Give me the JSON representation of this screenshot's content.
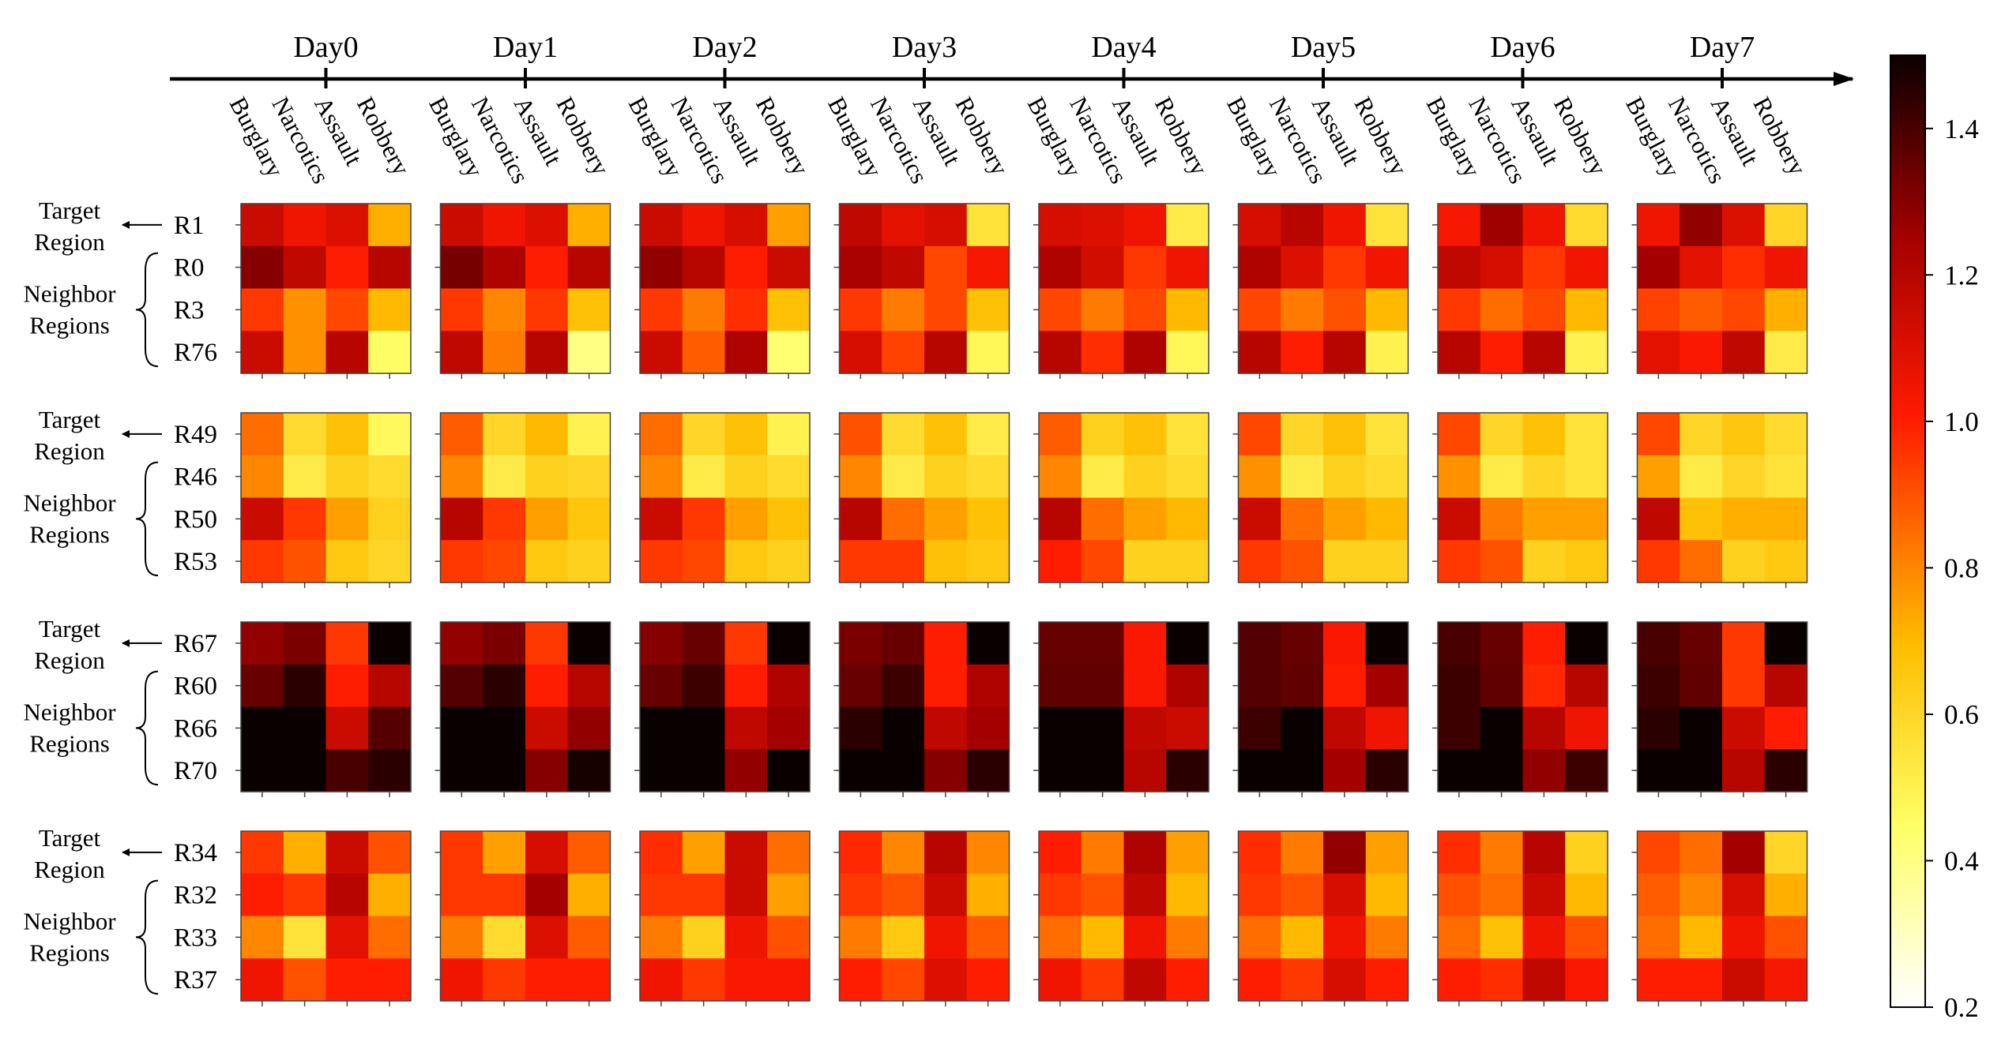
{
  "chart_data": {
    "type": "heatmap",
    "title": "",
    "timeline": [
      "Day0",
      "Day1",
      "Day2",
      "Day3",
      "Day4",
      "Day5",
      "Day6",
      "Day7"
    ],
    "categories": [
      "Burglary",
      "Narcotics",
      "Assault",
      "Robbery"
    ],
    "colormap": "hot_r",
    "colorbar": {
      "min": 0.2,
      "max": 1.5,
      "ticks": [
        0.2,
        0.4,
        0.6,
        0.8,
        1.0,
        1.2,
        1.4
      ],
      "tick_labels": [
        "0.2",
        "0.4",
        "0.6",
        "0.8",
        "1.0",
        "1.2",
        "1.4"
      ]
    },
    "region_labels": {
      "target": "Target Region",
      "neighbor": "Neighbor Regions"
    },
    "groups": [
      {
        "rows": [
          "R1",
          "R0",
          "R3",
          "R76"
        ],
        "days": [
          [
            [
              1.15,
              1.05,
              1.1,
              0.72
            ],
            [
              1.3,
              1.18,
              1.0,
              1.2
            ],
            [
              0.95,
              0.78,
              0.92,
              0.7
            ],
            [
              1.15,
              0.78,
              1.2,
              0.45
            ]
          ],
          [
            [
              1.15,
              1.05,
              1.1,
              0.72
            ],
            [
              1.33,
              1.22,
              1.0,
              1.2
            ],
            [
              0.95,
              0.8,
              0.95,
              0.68
            ],
            [
              1.18,
              0.82,
              1.2,
              0.4
            ]
          ],
          [
            [
              1.15,
              1.05,
              1.12,
              0.75
            ],
            [
              1.28,
              1.2,
              1.0,
              1.15
            ],
            [
              0.95,
              0.82,
              0.97,
              0.68
            ],
            [
              1.15,
              0.88,
              1.22,
              0.43
            ]
          ],
          [
            [
              1.18,
              1.08,
              1.12,
              0.55
            ],
            [
              1.24,
              1.18,
              0.92,
              1.03
            ],
            [
              0.95,
              0.82,
              0.92,
              0.68
            ],
            [
              1.12,
              0.93,
              1.2,
              0.48
            ]
          ],
          [
            [
              1.12,
              1.1,
              1.05,
              0.52
            ],
            [
              1.22,
              1.13,
              0.95,
              1.05
            ],
            [
              0.92,
              0.82,
              0.92,
              0.7
            ],
            [
              1.2,
              0.97,
              1.22,
              0.48
            ]
          ],
          [
            [
              1.12,
              1.2,
              1.05,
              0.55
            ],
            [
              1.22,
              1.1,
              0.95,
              1.04
            ],
            [
              0.92,
              0.82,
              0.9,
              0.7
            ],
            [
              1.2,
              1.0,
              1.2,
              0.5
            ]
          ],
          [
            [
              1.03,
              1.26,
              1.05,
              0.58
            ],
            [
              1.18,
              1.12,
              0.95,
              1.04
            ],
            [
              0.95,
              0.85,
              0.92,
              0.7
            ],
            [
              1.2,
              1.0,
              1.2,
              0.5
            ]
          ],
          [
            [
              1.05,
              1.28,
              1.1,
              0.6
            ],
            [
              1.25,
              1.08,
              0.97,
              1.05
            ],
            [
              0.93,
              0.88,
              0.92,
              0.72
            ],
            [
              1.08,
              1.02,
              1.18,
              0.52
            ]
          ]
        ]
      },
      {
        "rows": [
          "R49",
          "R46",
          "R50",
          "R53"
        ],
        "days": [
          [
            [
              0.85,
              0.58,
              0.68,
              0.47
            ],
            [
              0.8,
              0.52,
              0.62,
              0.58
            ],
            [
              1.15,
              0.95,
              0.75,
              0.62
            ],
            [
              0.95,
              0.9,
              0.65,
              0.6
            ]
          ],
          [
            [
              0.88,
              0.6,
              0.7,
              0.5
            ],
            [
              0.8,
              0.52,
              0.62,
              0.6
            ],
            [
              1.2,
              0.95,
              0.75,
              0.66
            ],
            [
              0.95,
              0.92,
              0.65,
              0.62
            ]
          ],
          [
            [
              0.85,
              0.6,
              0.68,
              0.5
            ],
            [
              0.8,
              0.52,
              0.62,
              0.58
            ],
            [
              1.15,
              0.95,
              0.75,
              0.68
            ],
            [
              0.95,
              0.92,
              0.65,
              0.62
            ]
          ],
          [
            [
              0.9,
              0.58,
              0.68,
              0.52
            ],
            [
              0.8,
              0.52,
              0.62,
              0.58
            ],
            [
              1.2,
              0.85,
              0.75,
              0.68
            ],
            [
              0.95,
              0.95,
              0.68,
              0.65
            ]
          ],
          [
            [
              0.88,
              0.62,
              0.68,
              0.55
            ],
            [
              0.8,
              0.52,
              0.62,
              0.58
            ],
            [
              1.2,
              0.85,
              0.75,
              0.7
            ],
            [
              1.0,
              0.92,
              0.62,
              0.62
            ]
          ],
          [
            [
              0.92,
              0.6,
              0.68,
              0.55
            ],
            [
              0.78,
              0.52,
              0.62,
              0.58
            ],
            [
              1.15,
              0.85,
              0.75,
              0.7
            ],
            [
              0.95,
              0.9,
              0.62,
              0.62
            ]
          ],
          [
            [
              0.92,
              0.6,
              0.68,
              0.55
            ],
            [
              0.78,
              0.52,
              0.6,
              0.55
            ],
            [
              1.15,
              0.82,
              0.75,
              0.75
            ],
            [
              0.95,
              0.9,
              0.62,
              0.65
            ]
          ],
          [
            [
              0.92,
              0.6,
              0.66,
              0.58
            ],
            [
              0.75,
              0.52,
              0.6,
              0.55
            ],
            [
              1.18,
              0.68,
              0.72,
              0.72
            ],
            [
              0.95,
              0.85,
              0.62,
              0.65
            ]
          ]
        ]
      },
      {
        "rows": [
          "R67",
          "R60",
          "R66",
          "R70"
        ],
        "days": [
          [
            [
              1.28,
              1.32,
              0.95,
              1.5
            ],
            [
              1.35,
              1.45,
              1.0,
              1.2
            ],
            [
              1.5,
              1.5,
              1.15,
              1.38
            ],
            [
              1.5,
              1.5,
              1.4,
              1.45
            ]
          ],
          [
            [
              1.28,
              1.32,
              0.95,
              1.5
            ],
            [
              1.38,
              1.45,
              1.0,
              1.2
            ],
            [
              1.5,
              1.5,
              1.15,
              1.28
            ],
            [
              1.5,
              1.5,
              1.3,
              1.48
            ]
          ],
          [
            [
              1.3,
              1.35,
              0.95,
              1.5
            ],
            [
              1.35,
              1.42,
              1.0,
              1.22
            ],
            [
              1.5,
              1.5,
              1.18,
              1.25
            ],
            [
              1.5,
              1.5,
              1.28,
              1.5
            ]
          ],
          [
            [
              1.32,
              1.35,
              1.0,
              1.5
            ],
            [
              1.35,
              1.42,
              1.0,
              1.22
            ],
            [
              1.45,
              1.5,
              1.18,
              1.25
            ],
            [
              1.5,
              1.5,
              1.3,
              1.45
            ]
          ],
          [
            [
              1.35,
              1.35,
              1.02,
              1.5
            ],
            [
              1.36,
              1.36,
              1.02,
              1.22
            ],
            [
              1.5,
              1.5,
              1.18,
              1.15
            ],
            [
              1.5,
              1.5,
              1.2,
              1.45
            ]
          ],
          [
            [
              1.38,
              1.35,
              1.02,
              1.5
            ],
            [
              1.38,
              1.36,
              1.0,
              1.25
            ],
            [
              1.42,
              1.5,
              1.18,
              1.05
            ],
            [
              1.5,
              1.5,
              1.25,
              1.45
            ]
          ],
          [
            [
              1.4,
              1.35,
              1.0,
              1.5
            ],
            [
              1.42,
              1.36,
              0.98,
              1.2
            ],
            [
              1.42,
              1.5,
              1.2,
              1.05
            ],
            [
              1.5,
              1.5,
              1.28,
              1.42
            ]
          ],
          [
            [
              1.4,
              1.35,
              0.95,
              1.5
            ],
            [
              1.42,
              1.36,
              0.95,
              1.2
            ],
            [
              1.45,
              1.5,
              1.15,
              1.0
            ],
            [
              1.5,
              1.5,
              1.2,
              1.45
            ]
          ]
        ]
      },
      {
        "rows": [
          "R34",
          "R32",
          "R33",
          "R37"
        ],
        "days": [
          [
            [
              0.95,
              0.72,
              1.15,
              0.9
            ],
            [
              1.0,
              0.95,
              1.2,
              0.72
            ],
            [
              0.8,
              0.55,
              1.08,
              0.85
            ],
            [
              1.05,
              0.9,
              1.0,
              1.0
            ]
          ],
          [
            [
              0.95,
              0.75,
              1.12,
              0.88
            ],
            [
              0.95,
              0.95,
              1.25,
              0.72
            ],
            [
              0.82,
              0.58,
              1.1,
              0.88
            ],
            [
              1.05,
              0.95,
              1.0,
              1.0
            ]
          ],
          [
            [
              0.97,
              0.75,
              1.15,
              0.85
            ],
            [
              0.95,
              0.95,
              1.15,
              0.75
            ],
            [
              0.82,
              0.62,
              1.05,
              0.9
            ],
            [
              1.05,
              0.95,
              1.02,
              1.02
            ]
          ],
          [
            [
              0.98,
              0.8,
              1.2,
              0.8
            ],
            [
              0.95,
              0.9,
              1.15,
              0.72
            ],
            [
              0.82,
              0.65,
              1.05,
              0.88
            ],
            [
              1.0,
              0.92,
              1.1,
              1.0
            ]
          ],
          [
            [
              1.0,
              0.82,
              1.22,
              0.75
            ],
            [
              0.95,
              0.9,
              1.18,
              0.7
            ],
            [
              0.85,
              0.7,
              1.05,
              0.82
            ],
            [
              1.05,
              0.95,
              1.18,
              1.0
            ]
          ],
          [
            [
              0.97,
              0.82,
              1.28,
              0.75
            ],
            [
              0.95,
              0.9,
              1.12,
              0.7
            ],
            [
              0.85,
              0.7,
              1.05,
              0.82
            ],
            [
              1.0,
              0.95,
              1.12,
              1.0
            ]
          ],
          [
            [
              0.97,
              0.82,
              1.2,
              0.62
            ],
            [
              0.9,
              0.85,
              1.15,
              0.7
            ],
            [
              0.85,
              0.68,
              1.05,
              0.9
            ],
            [
              1.0,
              0.97,
              1.18,
              1.02
            ]
          ],
          [
            [
              0.92,
              0.85,
              1.25,
              0.6
            ],
            [
              0.88,
              0.8,
              1.12,
              0.72
            ],
            [
              0.85,
              0.7,
              1.05,
              0.9
            ],
            [
              1.0,
              1.0,
              1.15,
              1.03
            ]
          ]
        ]
      }
    ]
  }
}
